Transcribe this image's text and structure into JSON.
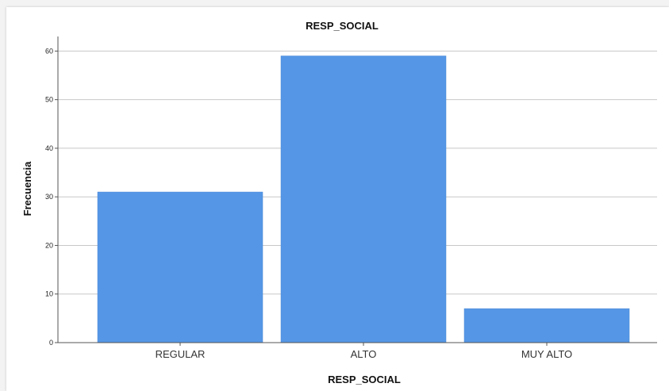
{
  "chart_data": {
    "type": "bar",
    "title": "RESP_SOCIAL",
    "xlabel": "RESP_SOCIAL",
    "ylabel": "Frecuencia",
    "categories": [
      "REGULAR",
      "ALTO",
      "MUY ALTO"
    ],
    "values": [
      31,
      59,
      7
    ],
    "ylim": [
      0,
      63
    ],
    "yticks": [
      0,
      10,
      20,
      30,
      40,
      50,
      60
    ],
    "grid": "horizontal",
    "bar_color": "#5597e6",
    "gridline_color": "#c8c8c8"
  }
}
